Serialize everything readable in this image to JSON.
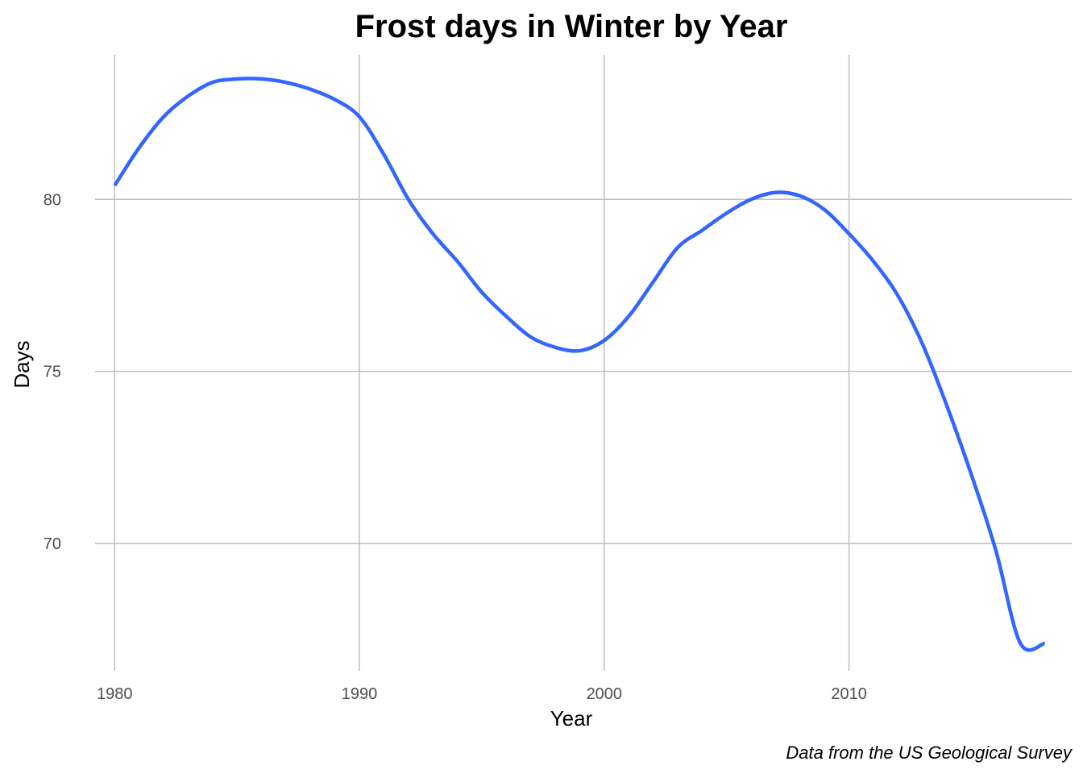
{
  "chart_data": {
    "type": "line",
    "title": "Frost days in Winter by Year",
    "xlabel": "Year",
    "ylabel": "Days",
    "caption": "Data from the US Geological Survey",
    "xlim": [
      1979.2,
      2019.1
    ],
    "ylim": [
      66.3,
      84.2
    ],
    "x_ticks": [
      1980,
      1990,
      2000,
      2010
    ],
    "y_ticks": [
      70,
      75,
      80
    ],
    "grid": true,
    "line_color": "#3366FF",
    "series": [
      {
        "x": [
          1980,
          1981,
          1982,
          1983,
          1984,
          1985,
          1986,
          1987,
          1988,
          1989,
          1990,
          1991,
          1992,
          1993,
          1994,
          1995,
          1996,
          1997,
          1998,
          1999,
          2000,
          2001,
          2002,
          2003,
          2004,
          2005,
          2006,
          2007,
          2008,
          2009,
          2010,
          2011,
          2012,
          2013,
          2014,
          2015,
          2016,
          2017,
          2018
        ],
        "y": [
          80.4,
          81.5,
          82.4,
          83.0,
          83.4,
          83.5,
          83.5,
          83.4,
          83.2,
          82.9,
          82.4,
          81.3,
          80.0,
          79.0,
          78.2,
          77.3,
          76.6,
          76.0,
          75.7,
          75.6,
          75.9,
          76.6,
          77.6,
          78.6,
          79.1,
          79.6,
          80.0,
          80.2,
          80.1,
          79.7,
          79.0,
          78.2,
          77.2,
          75.8,
          74.0,
          72.0,
          69.8,
          67.1,
          67.1
        ]
      }
    ]
  }
}
